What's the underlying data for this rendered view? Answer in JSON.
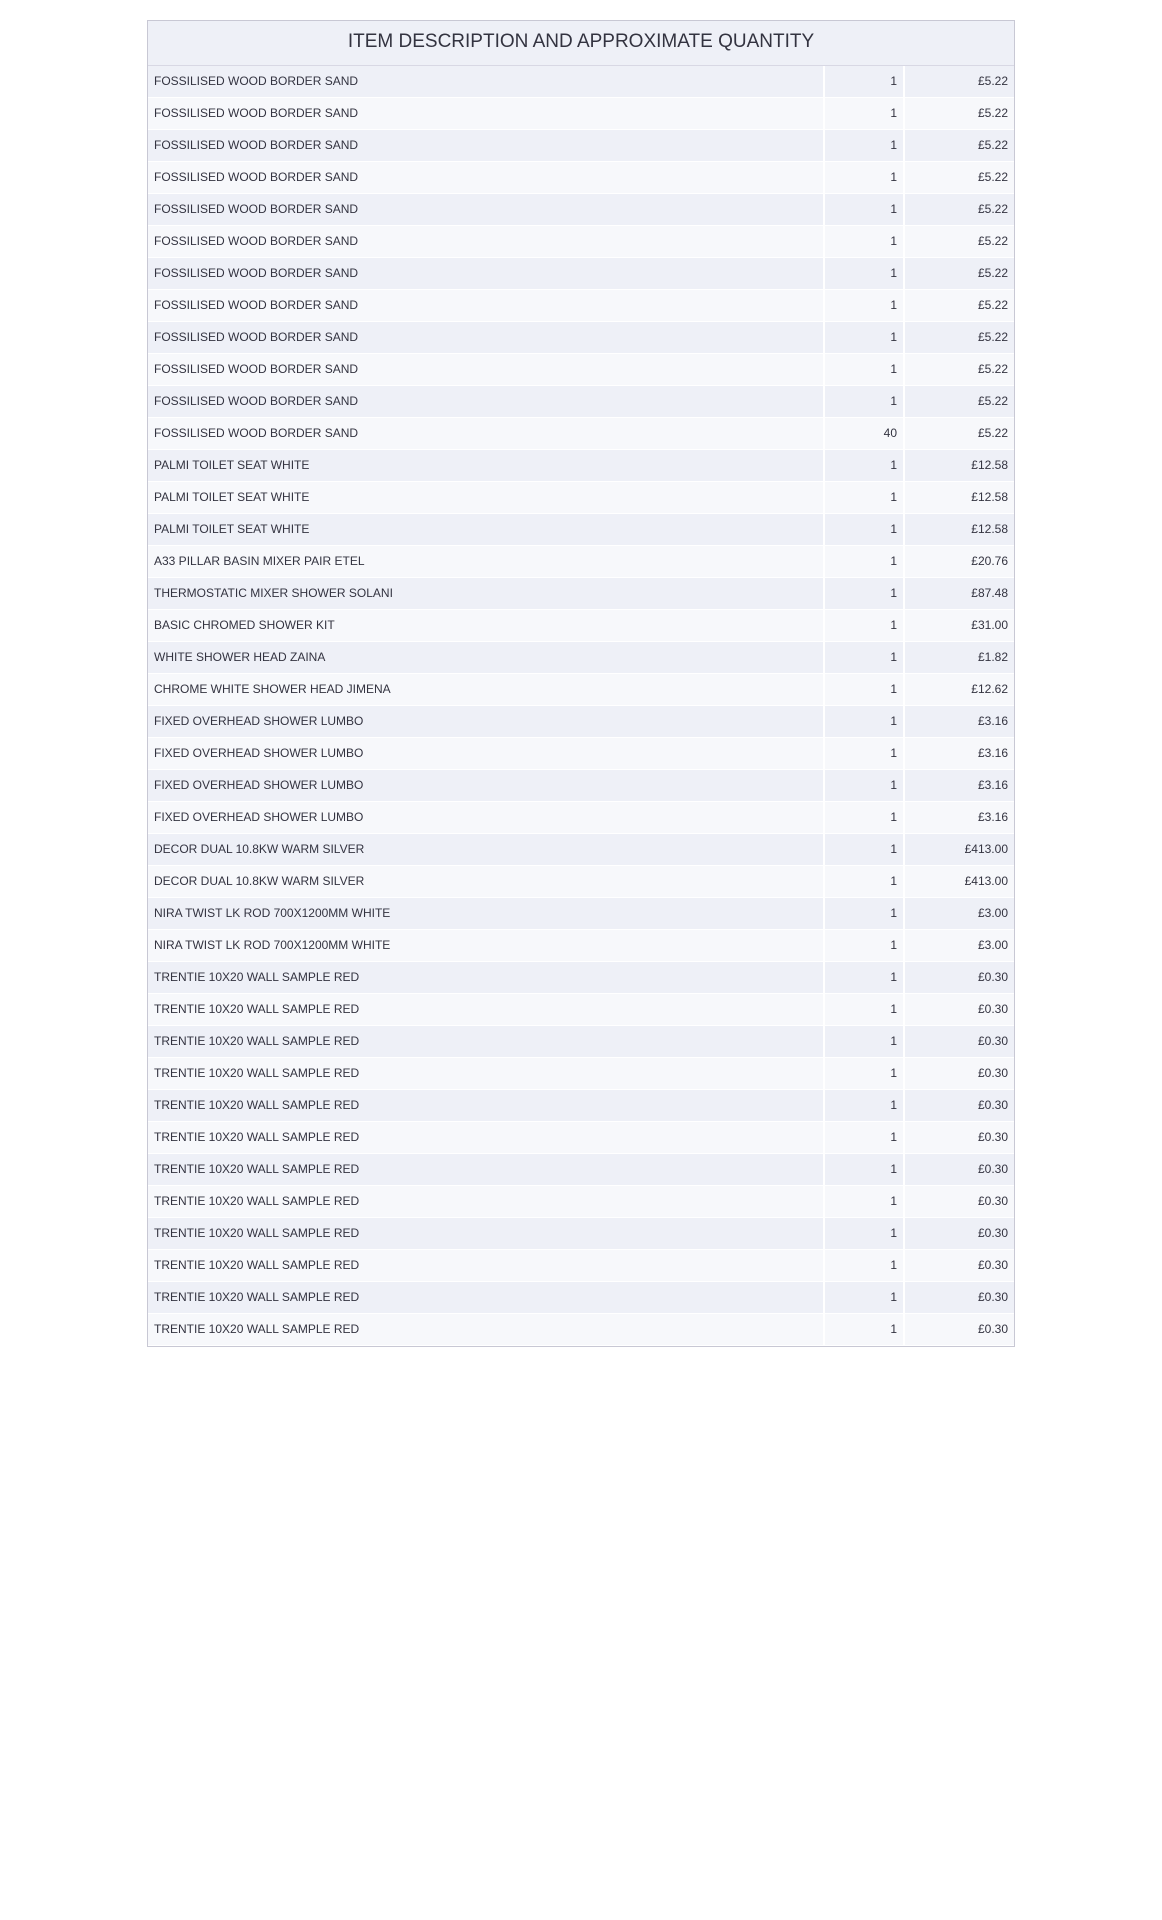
{
  "header": {
    "title": "ITEM DESCRIPTION AND APPROXIMATE QUANTITY"
  },
  "table": {
    "columns": [
      "description",
      "qty",
      "price"
    ],
    "rows": [
      {
        "description": "FOSSILISED WOOD BORDER SAND",
        "qty": "1",
        "price": "£5.22"
      },
      {
        "description": "FOSSILISED WOOD BORDER SAND",
        "qty": "1",
        "price": "£5.22"
      },
      {
        "description": "FOSSILISED WOOD BORDER SAND",
        "qty": "1",
        "price": "£5.22"
      },
      {
        "description": "FOSSILISED WOOD BORDER SAND",
        "qty": "1",
        "price": "£5.22"
      },
      {
        "description": "FOSSILISED WOOD BORDER SAND",
        "qty": "1",
        "price": "£5.22"
      },
      {
        "description": "FOSSILISED WOOD BORDER SAND",
        "qty": "1",
        "price": "£5.22"
      },
      {
        "description": "FOSSILISED WOOD BORDER SAND",
        "qty": "1",
        "price": "£5.22"
      },
      {
        "description": "FOSSILISED WOOD BORDER SAND",
        "qty": "1",
        "price": "£5.22"
      },
      {
        "description": "FOSSILISED WOOD BORDER SAND",
        "qty": "1",
        "price": "£5.22"
      },
      {
        "description": "FOSSILISED WOOD BORDER SAND",
        "qty": "1",
        "price": "£5.22"
      },
      {
        "description": "FOSSILISED WOOD BORDER SAND",
        "qty": "1",
        "price": "£5.22"
      },
      {
        "description": "FOSSILISED WOOD BORDER SAND",
        "qty": "40",
        "price": "£5.22"
      },
      {
        "description": "PALMI TOILET SEAT WHITE",
        "qty": "1",
        "price": "£12.58"
      },
      {
        "description": "PALMI TOILET SEAT WHITE",
        "qty": "1",
        "price": "£12.58"
      },
      {
        "description": "PALMI TOILET SEAT WHITE",
        "qty": "1",
        "price": "£12.58"
      },
      {
        "description": "A33 PILLAR BASIN MIXER PAIR ETEL",
        "qty": "1",
        "price": "£20.76"
      },
      {
        "description": "THERMOSTATIC MIXER SHOWER SOLANI",
        "qty": "1",
        "price": "£87.48"
      },
      {
        "description": "BASIC CHROMED SHOWER KIT",
        "qty": "1",
        "price": "£31.00"
      },
      {
        "description": "WHITE SHOWER HEAD ZAINA",
        "qty": "1",
        "price": "£1.82"
      },
      {
        "description": "CHROME WHITE SHOWER HEAD JIMENA",
        "qty": "1",
        "price": "£12.62"
      },
      {
        "description": "FIXED OVERHEAD SHOWER LUMBO",
        "qty": "1",
        "price": "£3.16"
      },
      {
        "description": "FIXED OVERHEAD SHOWER LUMBO",
        "qty": "1",
        "price": "£3.16"
      },
      {
        "description": "FIXED OVERHEAD SHOWER LUMBO",
        "qty": "1",
        "price": "£3.16"
      },
      {
        "description": "FIXED OVERHEAD SHOWER LUMBO",
        "qty": "1",
        "price": "£3.16"
      },
      {
        "description": "DECOR DUAL 10.8KW WARM SILVER",
        "qty": "1",
        "price": "£413.00"
      },
      {
        "description": "DECOR DUAL 10.8KW WARM SILVER",
        "qty": "1",
        "price": "£413.00"
      },
      {
        "description": "NIRA TWIST LK ROD 700X1200MM WHITE",
        "qty": "1",
        "price": "£3.00"
      },
      {
        "description": "NIRA TWIST LK ROD 700X1200MM WHITE",
        "qty": "1",
        "price": "£3.00"
      },
      {
        "description": "TRENTIE 10X20 WALL SAMPLE RED",
        "qty": "1",
        "price": "£0.30"
      },
      {
        "description": "TRENTIE 10X20 WALL SAMPLE RED",
        "qty": "1",
        "price": "£0.30"
      },
      {
        "description": "TRENTIE 10X20 WALL SAMPLE RED",
        "qty": "1",
        "price": "£0.30"
      },
      {
        "description": "TRENTIE 10X20 WALL SAMPLE RED",
        "qty": "1",
        "price": "£0.30"
      },
      {
        "description": "TRENTIE 10X20 WALL SAMPLE RED",
        "qty": "1",
        "price": "£0.30"
      },
      {
        "description": "TRENTIE 10X20 WALL SAMPLE RED",
        "qty": "1",
        "price": "£0.30"
      },
      {
        "description": "TRENTIE 10X20 WALL SAMPLE RED",
        "qty": "1",
        "price": "£0.30"
      },
      {
        "description": "TRENTIE 10X20 WALL SAMPLE RED",
        "qty": "1",
        "price": "£0.30"
      },
      {
        "description": "TRENTIE 10X20 WALL SAMPLE RED",
        "qty": "1",
        "price": "£0.30"
      },
      {
        "description": "TRENTIE 10X20 WALL SAMPLE RED",
        "qty": "1",
        "price": "£0.30"
      },
      {
        "description": "TRENTIE 10X20 WALL SAMPLE RED",
        "qty": "1",
        "price": "£0.30"
      },
      {
        "description": "TRENTIE 10X20 WALL SAMPLE RED",
        "qty": "1",
        "price": "£0.30"
      }
    ]
  },
  "style": {
    "row_odd_bg": "#eef0f7",
    "row_even_bg": "#f7f8fb",
    "border_color": "#c8c8d4",
    "text_color": "#333340",
    "header_fontsize": 19,
    "cell_fontsize": 12
  }
}
